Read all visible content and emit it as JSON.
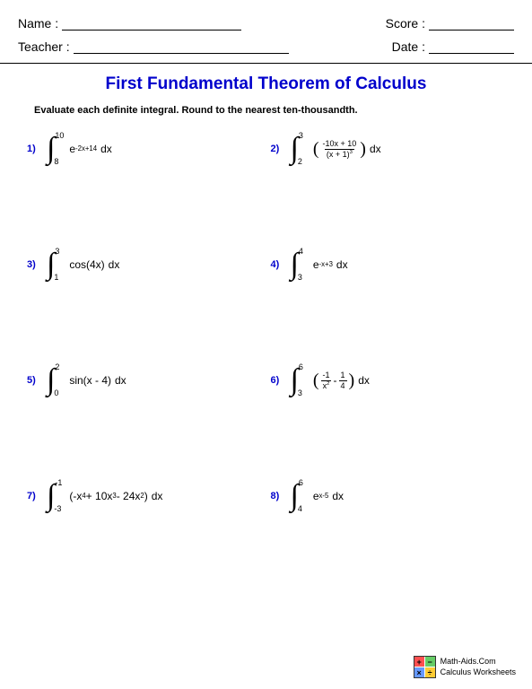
{
  "header": {
    "name_label": "Name :",
    "teacher_label": "Teacher :",
    "score_label": "Score :",
    "date_label": "Date :"
  },
  "title": "First Fundamental Theorem of Calculus",
  "instructions": "Evaluate each definite integral. Round to the nearest ten-thousandth.",
  "problems": [
    {
      "n": "1)",
      "lower": "8",
      "upper": "10",
      "type": "exp",
      "base": "e",
      "exp": "-2x+14"
    },
    {
      "n": "2)",
      "lower": "2",
      "upper": "3",
      "type": "frac_paren",
      "num": "-10x + 10",
      "den_base": "(x + 1)",
      "den_exp": "3"
    },
    {
      "n": "3)",
      "lower": "1",
      "upper": "3",
      "type": "plain",
      "expr": "cos(4x)"
    },
    {
      "n": "4)",
      "lower": "3",
      "upper": "4",
      "type": "exp",
      "base": "e",
      "exp": "-x+3"
    },
    {
      "n": "5)",
      "lower": "0",
      "upper": "2",
      "type": "plain",
      "expr": "sin(x - 4)"
    },
    {
      "n": "6)",
      "lower": "3",
      "upper": "6",
      "type": "two_frac",
      "f1_num": "-1",
      "f1_den_base": "x",
      "f1_den_exp": "2",
      "op": "-",
      "f2_num": "1",
      "f2_den": "4"
    },
    {
      "n": "7)",
      "lower": "-3",
      "upper": "-1",
      "type": "poly",
      "terms": "(-x⁴ + 10x³ - 24x²)"
    },
    {
      "n": "8)",
      "lower": "4",
      "upper": "6",
      "type": "exp",
      "base": "e",
      "exp": "x-5"
    }
  ],
  "footer": {
    "line1": "Math-Aids.Com",
    "line2": "Calculus Worksheets"
  },
  "colors": {
    "accent": "#0000cc",
    "text": "#000000",
    "background": "#ffffff"
  }
}
